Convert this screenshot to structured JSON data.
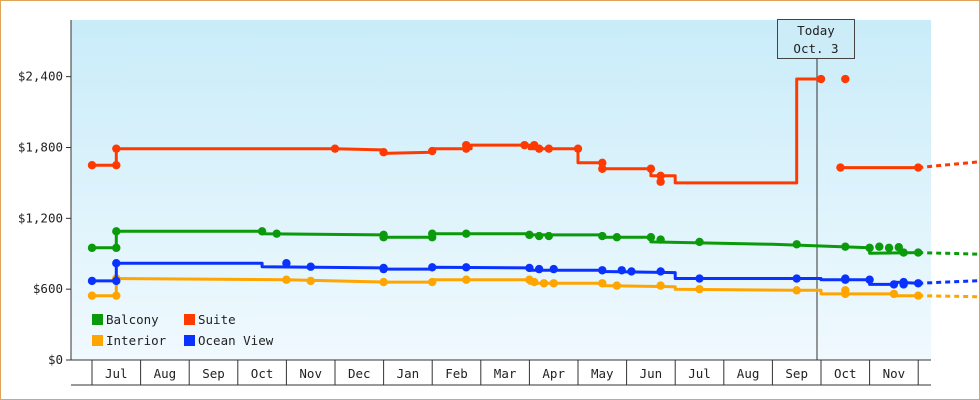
{
  "chart_data": {
    "type": "line",
    "ylim": [
      0,
      2400
    ],
    "y_ticks": [
      "$0",
      "$600",
      "$1,200",
      "$1,800",
      "$2,400"
    ],
    "y_tick_values": [
      0,
      600,
      1200,
      1800,
      2400
    ],
    "months": [
      "Jul",
      "Aug",
      "Sep",
      "Oct",
      "Nov",
      "Dec",
      "Jan",
      "Feb",
      "Mar",
      "Apr",
      "May",
      "Jun",
      "Jul",
      "Aug",
      "Sep",
      "Oct",
      "Nov"
    ],
    "today_marker": {
      "line1": "Today",
      "line2": "Oct. 3"
    },
    "grid": false,
    "legend_position": "bottom-left",
    "colors": {
      "Balcony": "#0a9a0a",
      "Suite": "#ff3a00",
      "Interior": "#ffa500",
      "Ocean View": "#0a32ff"
    },
    "series": [
      {
        "name": "Balcony",
        "points": [
          [
            -0.5,
            950
          ],
          [
            0,
            950
          ],
          [
            0,
            1090
          ],
          [
            3,
            1090
          ],
          [
            3,
            1070
          ],
          [
            5.5,
            1060
          ],
          [
            5.5,
            1040
          ],
          [
            6.5,
            1040
          ],
          [
            6.5,
            1070
          ],
          [
            8.5,
            1070
          ],
          [
            8.5,
            1060
          ],
          [
            10,
            1060
          ],
          [
            10,
            1040
          ],
          [
            11,
            1040
          ],
          [
            11,
            1000
          ],
          [
            13.5,
            980
          ],
          [
            15.5,
            950
          ],
          [
            15.5,
            905
          ],
          [
            16.5,
            910
          ]
        ],
        "forecast": [
          [
            16.5,
            910
          ],
          [
            19.3,
            880
          ]
        ]
      },
      {
        "name": "Suite",
        "points": [
          [
            -0.5,
            1650
          ],
          [
            0,
            1650
          ],
          [
            0,
            1790
          ],
          [
            4.5,
            1790
          ],
          [
            5.5,
            1780
          ],
          [
            5.5,
            1750
          ],
          [
            6.5,
            1760
          ],
          [
            6.5,
            1790
          ],
          [
            7.3,
            1790
          ],
          [
            7.3,
            1820
          ],
          [
            8.5,
            1820
          ],
          [
            8.5,
            1790
          ],
          [
            9.5,
            1790
          ],
          [
            9.5,
            1670
          ],
          [
            10,
            1670
          ],
          [
            10,
            1620
          ],
          [
            11,
            1620
          ],
          [
            11,
            1560
          ],
          [
            11.5,
            1560
          ],
          [
            11.5,
            1500
          ],
          [
            14,
            1500
          ],
          [
            14,
            2380
          ],
          [
            14.5,
            2380
          ]
        ],
        "gap_segment": [
          [
            14.9,
            1630
          ],
          [
            16.5,
            1630
          ]
        ],
        "forecast": [
          [
            16.5,
            1630
          ],
          [
            19.3,
            1740
          ]
        ]
      },
      {
        "name": "Interior",
        "points": [
          [
            -0.5,
            545
          ],
          [
            0,
            545
          ],
          [
            0,
            690
          ],
          [
            3.5,
            680
          ],
          [
            5.5,
            660
          ],
          [
            6.5,
            660
          ],
          [
            6.5,
            680
          ],
          [
            8.5,
            680
          ],
          [
            8.5,
            650
          ],
          [
            10,
            650
          ],
          [
            10,
            630
          ],
          [
            11.5,
            620
          ],
          [
            11.5,
            600
          ],
          [
            14,
            590
          ],
          [
            14.5,
            590
          ],
          [
            14.5,
            560
          ],
          [
            16,
            560
          ],
          [
            16,
            545
          ],
          [
            16.5,
            545
          ]
        ],
        "forecast": [
          [
            16.5,
            545
          ],
          [
            19.3,
            525
          ]
        ]
      },
      {
        "name": "Ocean View",
        "points": [
          [
            -0.5,
            670
          ],
          [
            0,
            670
          ],
          [
            0,
            820
          ],
          [
            3,
            820
          ],
          [
            3,
            790
          ],
          [
            5.5,
            780
          ],
          [
            5.5,
            770
          ],
          [
            6.5,
            770
          ],
          [
            6.5,
            785
          ],
          [
            8.5,
            780
          ],
          [
            8.5,
            760
          ],
          [
            10,
            760
          ],
          [
            10,
            750
          ],
          [
            11.5,
            740
          ],
          [
            11.5,
            690
          ],
          [
            14,
            690
          ],
          [
            14.5,
            690
          ],
          [
            14.5,
            680
          ],
          [
            15.5,
            680
          ],
          [
            15.5,
            640
          ],
          [
            16,
            640
          ],
          [
            16,
            660
          ],
          [
            16.5,
            650
          ]
        ],
        "forecast": [
          [
            16.5,
            650
          ],
          [
            19.3,
            700
          ]
        ]
      }
    ],
    "markers": {
      "Balcony": [
        [
          -0.5,
          950
        ],
        [
          0,
          950
        ],
        [
          0,
          1090
        ],
        [
          3,
          1090
        ],
        [
          3.3,
          1070
        ],
        [
          5.5,
          1060
        ],
        [
          5.5,
          1040
        ],
        [
          6.5,
          1040
        ],
        [
          6.5,
          1070
        ],
        [
          7.2,
          1070
        ],
        [
          8.5,
          1060
        ],
        [
          8.7,
          1050
        ],
        [
          8.9,
          1050
        ],
        [
          10,
          1050
        ],
        [
          10.3,
          1040
        ],
        [
          11,
          1040
        ],
        [
          11.2,
          1020
        ],
        [
          12,
          1000
        ],
        [
          14,
          980
        ],
        [
          15,
          960
        ],
        [
          15.5,
          950
        ],
        [
          15.7,
          960
        ],
        [
          15.9,
          950
        ],
        [
          16.1,
          955
        ],
        [
          16.2,
          910
        ],
        [
          16.5,
          910
        ]
      ],
      "Suite": [
        [
          -0.5,
          1650
        ],
        [
          0,
          1650
        ],
        [
          0,
          1790
        ],
        [
          4.5,
          1790
        ],
        [
          5.5,
          1760
        ],
        [
          6.5,
          1770
        ],
        [
          7.2,
          1790
        ],
        [
          7.2,
          1820
        ],
        [
          8.4,
          1820
        ],
        [
          8.6,
          1820
        ],
        [
          8.7,
          1790
        ],
        [
          8.9,
          1790
        ],
        [
          9.5,
          1790
        ],
        [
          10,
          1670
        ],
        [
          10,
          1620
        ],
        [
          11,
          1620
        ],
        [
          11.2,
          1560
        ],
        [
          11.2,
          1510
        ],
        [
          14.5,
          2380
        ],
        [
          15,
          2380
        ],
        [
          14.9,
          1630
        ],
        [
          16.5,
          1630
        ]
      ],
      "Interior": [
        [
          -0.5,
          545
        ],
        [
          0,
          545
        ],
        [
          0,
          690
        ],
        [
          3.5,
          680
        ],
        [
          4,
          670
        ],
        [
          5.5,
          660
        ],
        [
          6.5,
          660
        ],
        [
          7.2,
          680
        ],
        [
          8.5,
          680
        ],
        [
          8.6,
          660
        ],
        [
          8.8,
          650
        ],
        [
          9,
          650
        ],
        [
          10,
          650
        ],
        [
          10.3,
          630
        ],
        [
          11.2,
          630
        ],
        [
          12,
          600
        ],
        [
          14,
          590
        ],
        [
          15,
          590
        ],
        [
          15,
          560
        ],
        [
          16,
          560
        ],
        [
          16.5,
          545
        ]
      ],
      "Ocean View": [
        [
          -0.5,
          670
        ],
        [
          0,
          670
        ],
        [
          0,
          820
        ],
        [
          3.5,
          820
        ],
        [
          4,
          790
        ],
        [
          5.5,
          780
        ],
        [
          5.5,
          770
        ],
        [
          6.5,
          785
        ],
        [
          7.2,
          785
        ],
        [
          8.5,
          780
        ],
        [
          8.7,
          770
        ],
        [
          9,
          770
        ],
        [
          10,
          760
        ],
        [
          10.4,
          760
        ],
        [
          10.6,
          750
        ],
        [
          11.2,
          750
        ],
        [
          12,
          690
        ],
        [
          14,
          690
        ],
        [
          15,
          690
        ],
        [
          15,
          680
        ],
        [
          15.5,
          680
        ],
        [
          16,
          640
        ],
        [
          16.2,
          660
        ],
        [
          16.5,
          650
        ],
        [
          16.2,
          640
        ]
      ]
    }
  }
}
